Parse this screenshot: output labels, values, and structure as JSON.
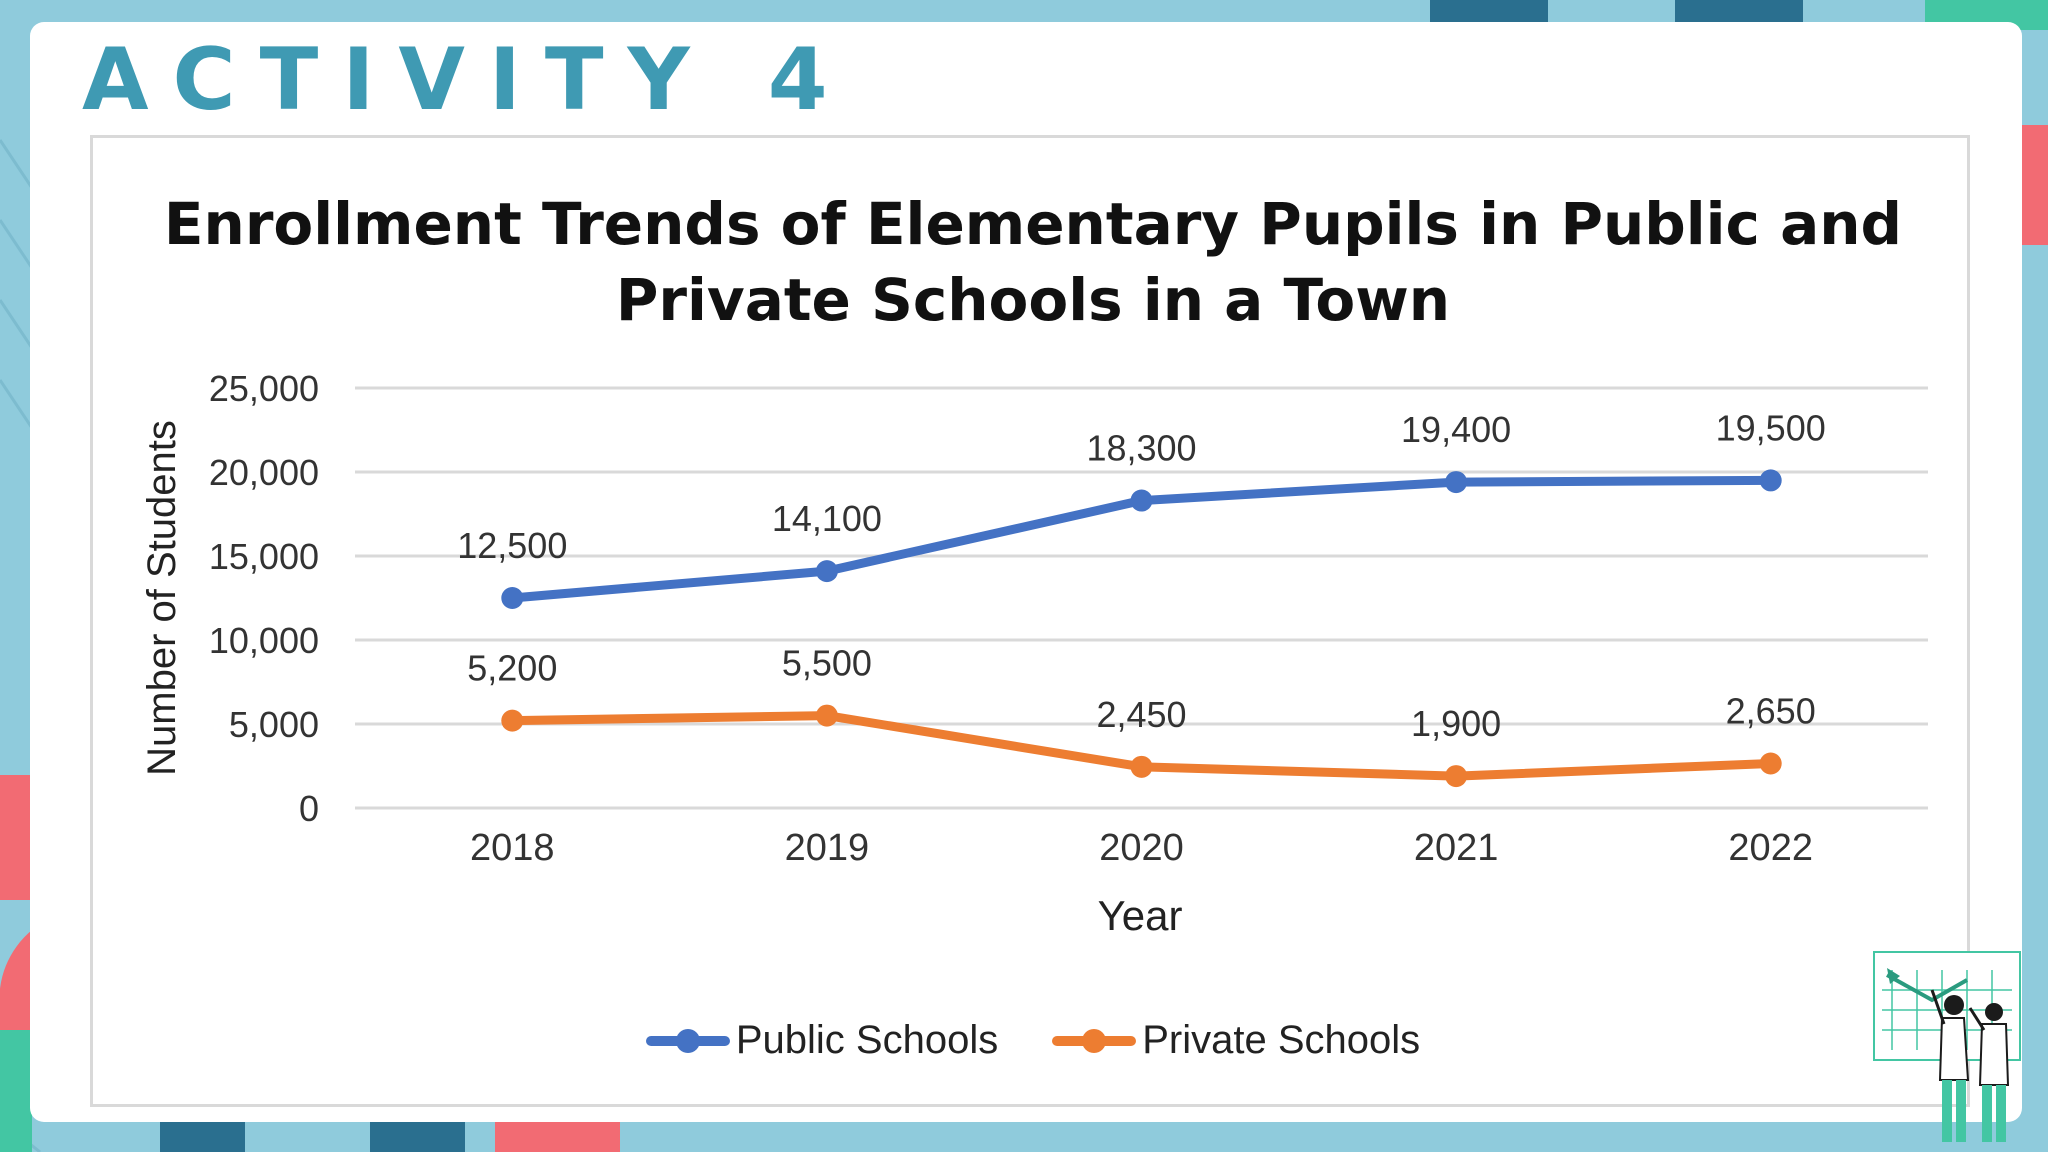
{
  "slide": {
    "heading": "ACTIVITY 4",
    "colors": {
      "frame": "#8fcbdc",
      "heading": "#3f9ab3",
      "accent_dark": "#2a6f8f",
      "accent_red": "#f26b73",
      "accent_green": "#43c6a3"
    }
  },
  "illustration": {
    "icon": "presenters-with-chart-icon"
  },
  "chart_data": {
    "type": "line",
    "title": "Enrollment Trends of Elementary Pupils in Public and Private Schools in a Town",
    "title_lines": [
      "Enrollment Trends of Elementary Pupils in Public and",
      "Private Schools in a Town"
    ],
    "xlabel": "Year",
    "ylabel": "Number of Students",
    "categories": [
      "2018",
      "2019",
      "2020",
      "2021",
      "2022"
    ],
    "ylim": [
      0,
      25000
    ],
    "yticks": [
      0,
      5000,
      10000,
      15000,
      20000,
      25000
    ],
    "ytick_labels": [
      "0",
      "5,000",
      "10,000",
      "15,000",
      "20,000",
      "25,000"
    ],
    "grid": true,
    "legend_position": "bottom",
    "series": [
      {
        "name": "Public Schools",
        "color": "#4472c4",
        "values": [
          12500,
          14100,
          18300,
          19400,
          19500
        ],
        "labels": [
          "12,500",
          "14,100",
          "18,300",
          "19,400",
          "19,500"
        ]
      },
      {
        "name": "Private Schools",
        "color": "#ed7d31",
        "values": [
          5200,
          5500,
          2450,
          1900,
          2650
        ],
        "labels": [
          "5,200",
          "5,500",
          "2,450",
          "1,900",
          "2,650"
        ]
      }
    ]
  }
}
